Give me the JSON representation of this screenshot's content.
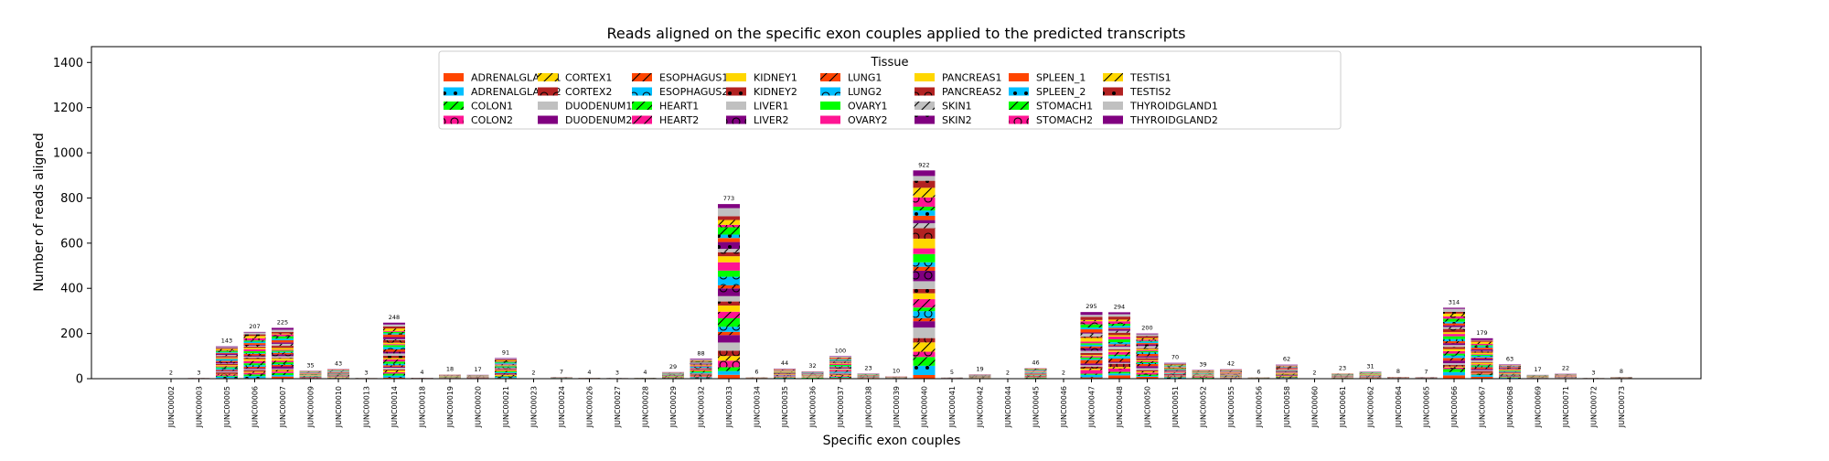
{
  "chart_data": {
    "type": "bar",
    "stacked": true,
    "title": "Reads aligned on the specific exon couples applied to the predicted transcripts",
    "xlabel": "Specific exon couples",
    "ylabel": "Number of reads aligned",
    "ylim": [
      0,
      1470
    ],
    "yticks": [
      0,
      200,
      400,
      600,
      800,
      1000,
      1200,
      1400
    ],
    "grid": false,
    "legend": {
      "title": "Tissue",
      "placement": "top-center",
      "columns": 9
    },
    "categories": [
      "JUNC00002",
      "JUNC00003",
      "JUNC00005",
      "JUNC00006",
      "JUNC00007",
      "JUNC00009",
      "JUNC00010",
      "JUNC00013",
      "JUNC00014",
      "JUNC00018",
      "JUNC00019",
      "JUNC00020",
      "JUNC00021",
      "JUNC00023",
      "JUNC00024",
      "JUNC00026",
      "JUNC00027",
      "JUNC00028",
      "JUNC00029",
      "JUNC00032",
      "JUNC00033",
      "JUNC00034",
      "JUNC00035",
      "JUNC00036",
      "JUNC00037",
      "JUNC00038",
      "JUNC00039",
      "JUNC00040",
      "JUNC00041",
      "JUNC00042",
      "JUNC00044",
      "JUNC00045",
      "JUNC00046",
      "JUNC00047",
      "JUNC00048",
      "JUNC00050",
      "JUNC00051",
      "JUNC00052",
      "JUNC00055",
      "JUNC00056",
      "JUNC00058",
      "JUNC00060",
      "JUNC00061",
      "JUNC00062",
      "JUNC00064",
      "JUNC00065",
      "JUNC00066",
      "JUNC00067",
      "JUNC00068",
      "JUNC00069",
      "JUNC00071",
      "JUNC00072",
      "JUNC00073"
    ],
    "totals": [
      2,
      3,
      143,
      207,
      225,
      35,
      43,
      3,
      248,
      4,
      18,
      17,
      91,
      2,
      7,
      4,
      3,
      4,
      29,
      88,
      773,
      6,
      44,
      32,
      100,
      23,
      10,
      922,
      5,
      19,
      2,
      46,
      2,
      295,
      294,
      200,
      70,
      39,
      42,
      6,
      62,
      2,
      23,
      31,
      8,
      7,
      314,
      179,
      63,
      17,
      22,
      3,
      8
    ],
    "series": [
      {
        "name": "ADRENALGLAND1",
        "color": "#ff4500",
        "hatch": "none"
      },
      {
        "name": "ADRENALGLAND2",
        "color": "#00bfff",
        "hatch": "dots"
      },
      {
        "name": "COLON1",
        "color": "#00ff00",
        "hatch": "slash"
      },
      {
        "name": "COLON2",
        "color": "#ff1493",
        "hatch": "circles"
      },
      {
        "name": "CORTEX1",
        "color": "#ffd700",
        "hatch": "slash"
      },
      {
        "name": "CORTEX2",
        "color": "#b22222",
        "hatch": "circles"
      },
      {
        "name": "DUODENUM1",
        "color": "#c0c0c0",
        "hatch": "none"
      },
      {
        "name": "DUODENUM2",
        "color": "#800080",
        "hatch": "none"
      },
      {
        "name": "ESOPHAGUS1",
        "color": "#ff4500",
        "hatch": "slash"
      },
      {
        "name": "ESOPHAGUS2",
        "color": "#00bfff",
        "hatch": "circles"
      },
      {
        "name": "HEART1",
        "color": "#00ff00",
        "hatch": "slash"
      },
      {
        "name": "HEART2",
        "color": "#ff1493",
        "hatch": "slash"
      },
      {
        "name": "KIDNEY1",
        "color": "#ffd700",
        "hatch": "none"
      },
      {
        "name": "KIDNEY2",
        "color": "#b22222",
        "hatch": "dots"
      },
      {
        "name": "LIVER1",
        "color": "#c0c0c0",
        "hatch": "none"
      },
      {
        "name": "LIVER2",
        "color": "#800080",
        "hatch": "circles"
      },
      {
        "name": "LUNG1",
        "color": "#ff4500",
        "hatch": "slash"
      },
      {
        "name": "LUNG2",
        "color": "#00bfff",
        "hatch": "circles"
      },
      {
        "name": "OVARY1",
        "color": "#00ff00",
        "hatch": "none"
      },
      {
        "name": "OVARY2",
        "color": "#ff1493",
        "hatch": "none"
      },
      {
        "name": "PANCREAS1",
        "color": "#ffd700",
        "hatch": "none"
      },
      {
        "name": "PANCREAS2",
        "color": "#b22222",
        "hatch": "circles"
      },
      {
        "name": "SKIN1",
        "color": "#c0c0c0",
        "hatch": "slash"
      },
      {
        "name": "SKIN2",
        "color": "#800080",
        "hatch": "dots"
      },
      {
        "name": "SPLEEN_1",
        "color": "#ff4500",
        "hatch": "none"
      },
      {
        "name": "SPLEEN_2",
        "color": "#00bfff",
        "hatch": "dots"
      },
      {
        "name": "STOMACH1",
        "color": "#00ff00",
        "hatch": "slash"
      },
      {
        "name": "STOMACH2",
        "color": "#ff1493",
        "hatch": "circles"
      },
      {
        "name": "TESTIS1",
        "color": "#ffd700",
        "hatch": "slash"
      },
      {
        "name": "TESTIS2",
        "color": "#b22222",
        "hatch": "dots"
      },
      {
        "name": "THYROIDGLAND1",
        "color": "#c0c0c0",
        "hatch": "none"
      },
      {
        "name": "THYROIDGLAND2",
        "color": "#800080",
        "hatch": "none"
      }
    ]
  }
}
